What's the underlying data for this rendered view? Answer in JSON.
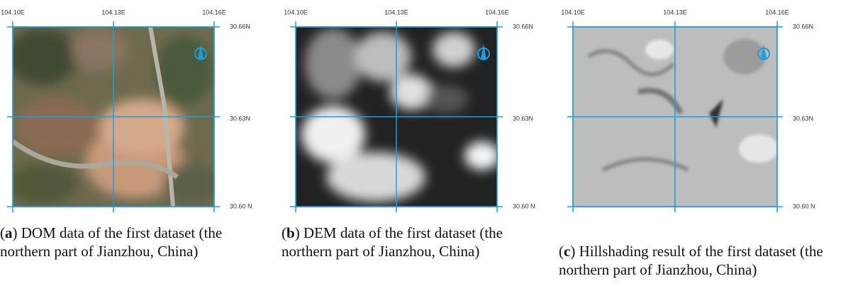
{
  "panels": [
    {
      "caption": [
        "(",
        "a",
        ") DOM data of the first dataset (the northern part of Jianzhou, China)"
      ],
      "x_ticks": [
        "104.10E",
        "104.13E",
        "104.16E"
      ],
      "y_ticks": [
        "30.66N",
        "30.63N",
        "30.60 N"
      ]
    },
    {
      "caption": [
        "(",
        "b",
        ") DEM data of the first dataset (the northern part of Jianzhou, China)"
      ],
      "x_ticks": [
        "104.10E",
        "104.13E",
        "104.16E"
      ],
      "y_ticks": [
        "30.66N",
        "30.63N",
        "30.60 N"
      ]
    },
    {
      "caption": [
        "(",
        "c",
        ") Hillshading result of the first dataset (the northern part of Jianzhou, China)"
      ],
      "x_ticks": [
        "104.10E",
        "104.13E",
        "104.16E"
      ],
      "y_ticks": [
        "30.66N",
        "30.63N",
        "30.60 N"
      ]
    }
  ]
}
